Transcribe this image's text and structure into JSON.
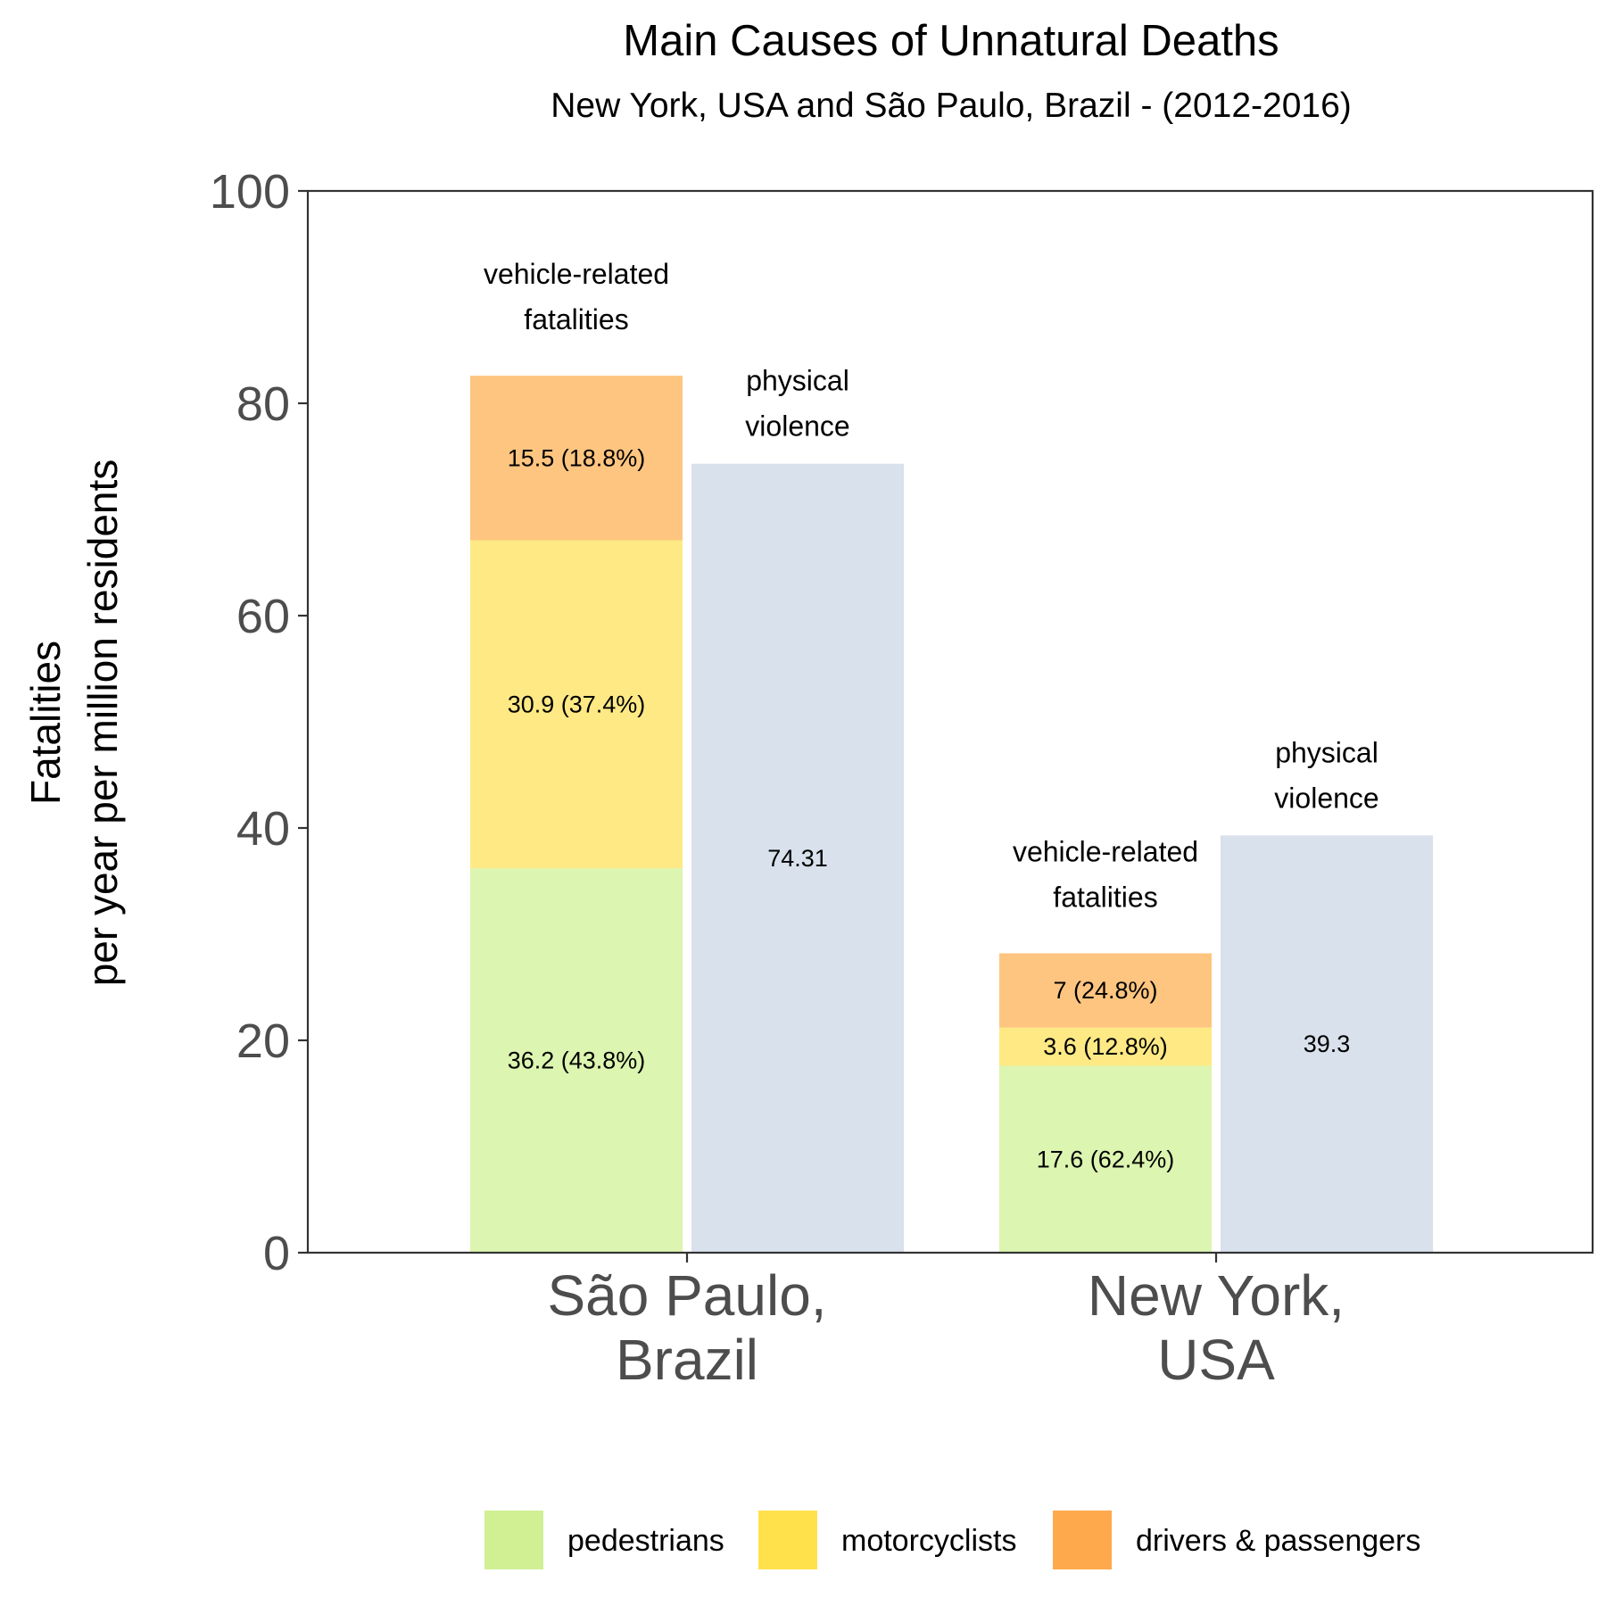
{
  "chart_data": {
    "type": "bar",
    "title": "Main Causes of Unnatural Deaths",
    "subtitle": "New York, USA and São Paulo, Brazil - (2012-2016)",
    "ylabel_lines": [
      "Fatalities",
      "per year per million residents"
    ],
    "ylim": [
      0,
      100
    ],
    "yticks": [
      0,
      20,
      40,
      60,
      80,
      100
    ],
    "grid": false,
    "legend_position": "bottom",
    "categories": [
      {
        "label_lines": [
          "São Paulo,",
          "Brazil"
        ]
      },
      {
        "label_lines": [
          "New York,",
          "USA"
        ]
      }
    ],
    "legend": [
      {
        "key": "pedestrians",
        "label": "pedestrians",
        "color": "#d1f094"
      },
      {
        "key": "motorcyclists",
        "label": "motorcyclists",
        "color": "#ffe14c"
      },
      {
        "key": "drivers",
        "label": "drivers & passengers",
        "color": "#ffa94d"
      }
    ],
    "bar_colors": {
      "pedestrians": "#dcf5b0",
      "motorcyclists": "#fee985",
      "drivers": "#fec580",
      "violence": "#d8e1ec"
    },
    "groups": [
      {
        "vehicle": {
          "label_lines": [
            "vehicle-related",
            "fatalities"
          ],
          "segments": [
            {
              "key": "pedestrians",
              "value": 36.2,
              "label": "36.2 (43.8%)"
            },
            {
              "key": "motorcyclists",
              "value": 30.9,
              "label": "30.9 (37.4%)"
            },
            {
              "key": "drivers",
              "value": 15.5,
              "label": "15.5 (18.8%)"
            }
          ]
        },
        "violence": {
          "label_lines": [
            "physical",
            "violence"
          ],
          "value": 74.31,
          "label": "74.31"
        }
      },
      {
        "vehicle": {
          "label_lines": [
            "vehicle-related",
            "fatalities"
          ],
          "segments": [
            {
              "key": "pedestrians",
              "value": 17.6,
              "label": "17.6 (62.4%)"
            },
            {
              "key": "motorcyclists",
              "value": 3.6,
              "label": "3.6 (12.8%)"
            },
            {
              "key": "drivers",
              "value": 7,
              "label": "7 (24.8%)"
            }
          ]
        },
        "violence": {
          "label_lines": [
            "physical",
            "violence"
          ],
          "value": 39.3,
          "label": "39.3"
        }
      }
    ]
  }
}
